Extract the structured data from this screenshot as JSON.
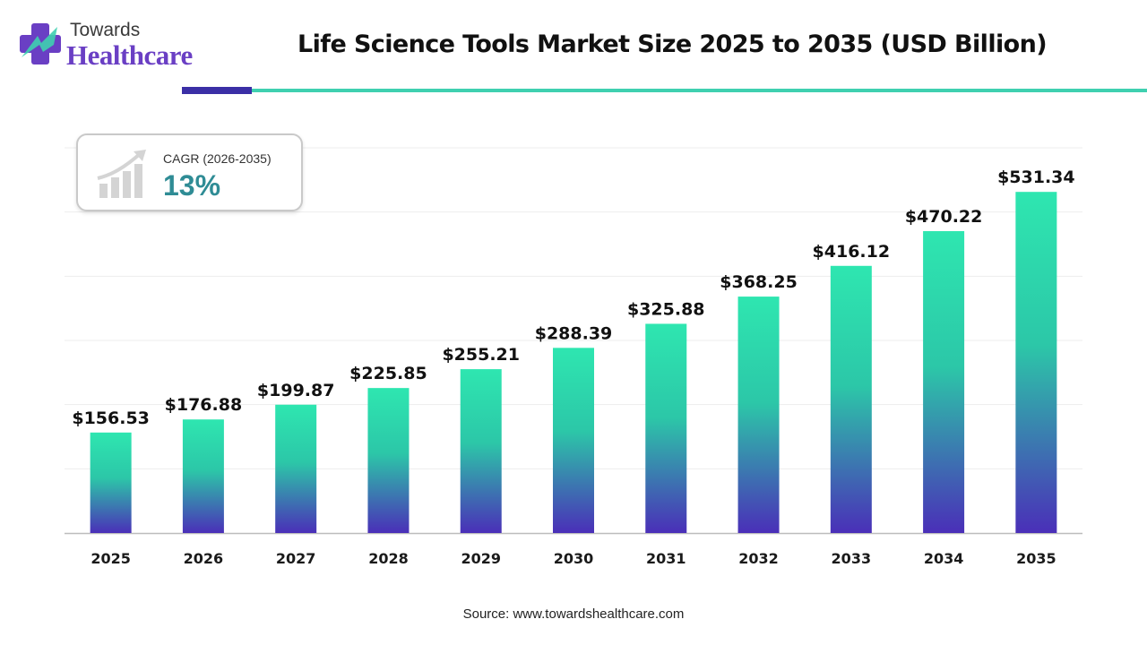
{
  "brand": {
    "line1": "Towards",
    "line2": "Healthcare"
  },
  "cagr": {
    "label": "CAGR (2026-2035)",
    "value": "13%"
  },
  "source": "Source: www.towardshealthcare.com",
  "colors": {
    "bar_top": "#2ee6b0",
    "bar_bottom": "#4a2fb8",
    "accent_dark": "#3b2fa6",
    "accent_teal": "#3fd0b0",
    "cagr_value": "#2f8c95"
  },
  "chart_data": {
    "type": "bar",
    "title": "Life Science Tools Market Size 2025 to 2035 (USD Billion)",
    "categories": [
      "2025",
      "2026",
      "2027",
      "2028",
      "2029",
      "2030",
      "2031",
      "2032",
      "2033",
      "2034",
      "2035"
    ],
    "values": [
      156.53,
      176.88,
      199.87,
      225.85,
      255.21,
      288.39,
      325.88,
      368.25,
      416.12,
      470.22,
      531.34
    ],
    "value_labels": [
      "$156.53",
      "$176.88",
      "$199.87",
      "$225.85",
      "$255.21",
      "$288.39",
      "$325.88",
      "$368.25",
      "$416.12",
      "$470.22",
      "$531.34"
    ],
    "ylim": [
      0,
      600
    ],
    "grid": true,
    "legend": "none",
    "xlabel": "",
    "ylabel": ""
  }
}
